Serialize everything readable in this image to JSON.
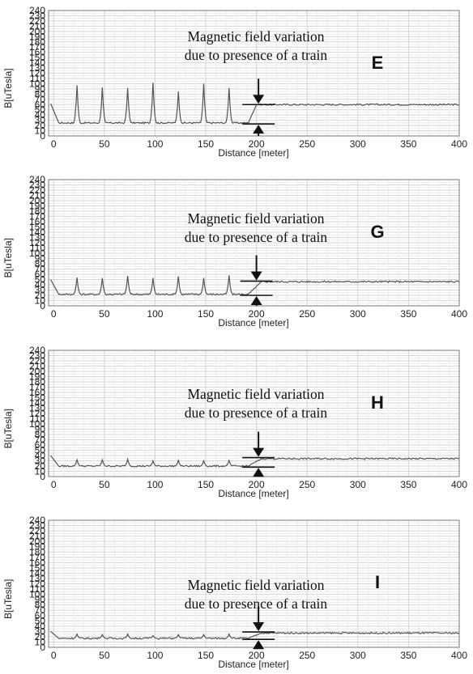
{
  "chart_data": [
    {
      "type": "line",
      "panel_label": "E",
      "annotation": [
        "Magnetic field variation",
        "due to presence of a train"
      ],
      "xlabel": "Distance [meter]",
      "ylabel": "B[uTesla]",
      "xlim": [
        -5,
        400
      ],
      "ylim": [
        0,
        240
      ],
      "x_ticks": [
        0,
        50,
        100,
        150,
        200,
        250,
        300,
        350,
        400
      ],
      "y_ticks": [
        0,
        10,
        20,
        30,
        40,
        50,
        60,
        70,
        80,
        90,
        100,
        110,
        120,
        130,
        140,
        150,
        160,
        170,
        180,
        190,
        200,
        210,
        220,
        230,
        240
      ],
      "grid": true,
      "baseline": 25,
      "baseline_ripple": 1.5,
      "spike_x": [
        23,
        48,
        73,
        98,
        123,
        148,
        173
      ],
      "spike_peaks": [
        97,
        93,
        92,
        102,
        85,
        100,
        92
      ],
      "start_value": 62,
      "step_x": [
        192,
        200
      ],
      "after_value": 60,
      "noise": 1.5,
      "marker_x": 202,
      "marker_upper": 60,
      "marker_lower": 23
    },
    {
      "type": "line",
      "panel_label": "G",
      "annotation": [
        "Magnetic field variation",
        "due to presence of a train"
      ],
      "xlabel": "Distance [meter]",
      "ylabel": "B[uTesla]",
      "xlim": [
        -5,
        400
      ],
      "ylim": [
        0,
        240
      ],
      "x_ticks": [
        0,
        50,
        100,
        150,
        200,
        250,
        300,
        350,
        400
      ],
      "y_ticks": [
        0,
        10,
        20,
        30,
        40,
        50,
        60,
        70,
        80,
        90,
        100,
        110,
        120,
        130,
        140,
        150,
        160,
        170,
        180,
        190,
        200,
        210,
        220,
        230,
        240
      ],
      "grid": true,
      "baseline": 22,
      "baseline_ripple": 1.5,
      "spike_x": [
        23,
        48,
        73,
        98,
        123,
        148,
        173
      ],
      "spike_peaks": [
        54,
        53,
        57,
        53,
        56,
        53,
        58
      ],
      "start_value": 50,
      "step_x": [
        192,
        205
      ],
      "after_value": 46,
      "noise": 1.5,
      "marker_x": 200,
      "marker_upper": 47,
      "marker_lower": 20
    },
    {
      "type": "line",
      "panel_label": "H",
      "annotation": [
        "Magnetic field variation",
        "due to presence of a train"
      ],
      "xlabel": "Distance [meter]",
      "ylabel": "B[uTesla]",
      "xlim": [
        -5,
        400
      ],
      "ylim": [
        0,
        240
      ],
      "x_ticks": [
        0,
        50,
        100,
        150,
        200,
        250,
        300,
        350,
        400
      ],
      "y_ticks": [
        0,
        10,
        20,
        30,
        40,
        50,
        60,
        70,
        80,
        90,
        100,
        110,
        120,
        130,
        140,
        150,
        160,
        170,
        180,
        190,
        200,
        210,
        220,
        230,
        240
      ],
      "grid": true,
      "baseline": 20,
      "baseline_ripple": 1.5,
      "spike_x": [
        23,
        48,
        73,
        98,
        123,
        148,
        173
      ],
      "spike_peaks": [
        32,
        32,
        33,
        30,
        31,
        30,
        31
      ],
      "start_value": 40,
      "step_x": [
        192,
        205
      ],
      "after_value": 34,
      "noise": 1.5,
      "marker_x": 202,
      "marker_upper": 36,
      "marker_lower": 18
    },
    {
      "type": "line",
      "panel_label": "I",
      "annotation": [
        "Magnetic field variation",
        "due to presence of a train"
      ],
      "xlabel": "Distance [meter]",
      "ylabel": "B[uTesla]",
      "xlim": [
        -5,
        400
      ],
      "ylim": [
        0,
        240
      ],
      "x_ticks": [
        0,
        50,
        100,
        150,
        200,
        250,
        300,
        350,
        400
      ],
      "y_ticks": [
        0,
        10,
        20,
        30,
        40,
        50,
        60,
        70,
        80,
        90,
        100,
        110,
        120,
        130,
        140,
        150,
        160,
        170,
        180,
        190,
        200,
        210,
        220,
        230,
        240
      ],
      "grid": true,
      "baseline": 17,
      "baseline_ripple": 1.5,
      "spike_x": [
        23,
        48,
        73,
        98,
        123,
        148,
        173
      ],
      "spike_peaks": [
        25,
        24,
        25,
        22,
        24,
        24,
        25
      ],
      "start_value": 30,
      "step_x": [
        192,
        205
      ],
      "after_value": 27,
      "noise": 1.5,
      "marker_x": 202,
      "marker_upper": 29,
      "marker_lower": 15
    }
  ]
}
